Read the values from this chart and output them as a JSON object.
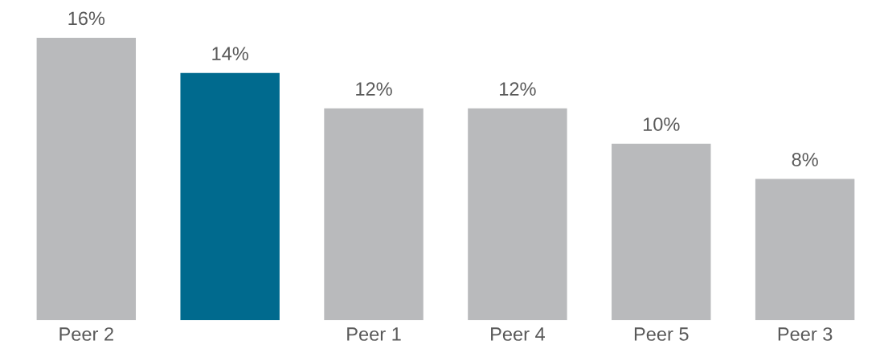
{
  "chart_data": {
    "type": "bar",
    "categories": [
      "Peer 2",
      null,
      "Peer 1",
      "Peer 4",
      "Peer 5",
      "Peer 3"
    ],
    "values": [
      16,
      14,
      12,
      12,
      10,
      8
    ],
    "value_labels": [
      "16%",
      "14%",
      "12%",
      "12%",
      "10%",
      "8%"
    ],
    "colors": [
      "#b9babc",
      "#006a8e",
      "#b9babc",
      "#b9babc",
      "#b9babc",
      "#b9babc"
    ],
    "grid": false,
    "legend": false
  }
}
